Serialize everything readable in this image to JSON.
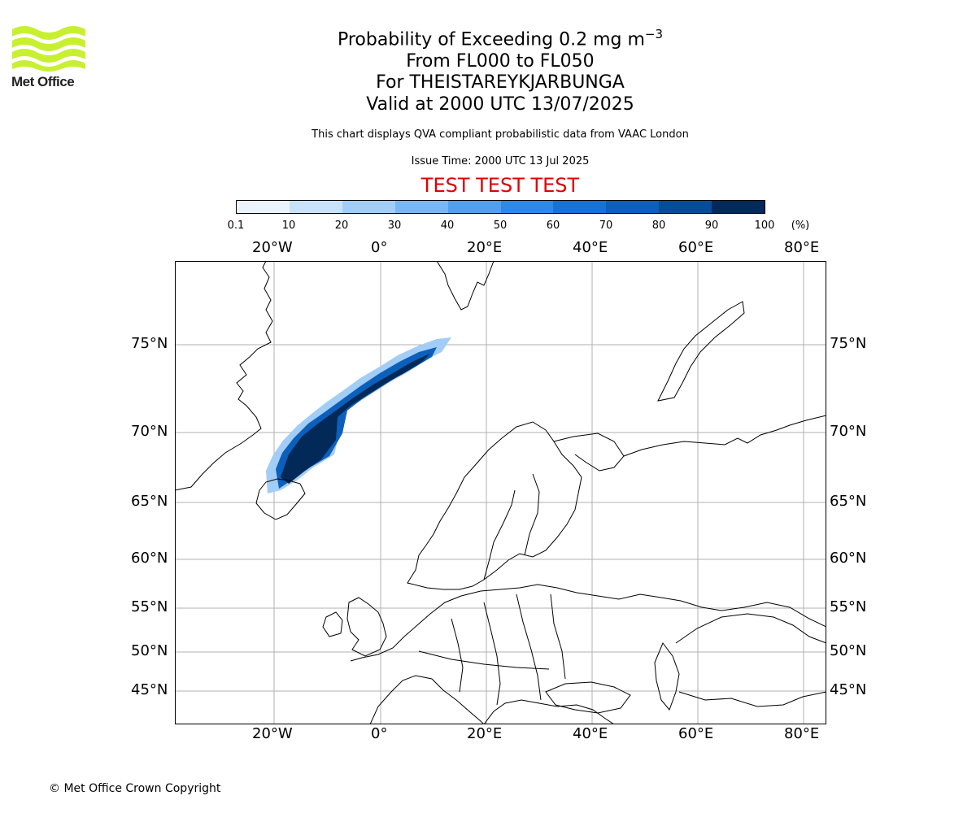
{
  "logo": {
    "name": "Met Office",
    "accent": "#c8f031"
  },
  "header": {
    "title_main": "Probability of Exceeding 0.2 mg m",
    "title_sup": "−3",
    "level": "From FL000 to FL050",
    "volcano": "For THEISTAREYKJARBUNGA",
    "valid": "Valid at 2000 UTC 13/07/2025",
    "description": "This chart displays QVA compliant probabilistic data from VAAC London",
    "issue": "Issue Time: 2000 UTC 13 Jul 2025",
    "test_banner": "TEST TEST TEST"
  },
  "colorbar": {
    "ticks": [
      "0.1",
      "10",
      "20",
      "30",
      "40",
      "50",
      "60",
      "70",
      "80",
      "90",
      "100"
    ],
    "unit": "(%)",
    "colors": [
      "#eaf3fe",
      "#c8e2fb",
      "#a2cdf7",
      "#79b7f4",
      "#4fa1f0",
      "#2b8ae8",
      "#1572d6",
      "#0c5fba",
      "#064c9b",
      "#03397a",
      "#022957"
    ]
  },
  "map": {
    "lon_labels": [
      "20°W",
      "0°",
      "20°E",
      "40°E",
      "60°E",
      "80°E"
    ],
    "lat_labels": [
      "75°N",
      "70°N",
      "65°N",
      "60°N",
      "55°N",
      "50°N",
      "45°N"
    ]
  },
  "footer": {
    "copyright": "© Met Office Crown Copyright"
  }
}
